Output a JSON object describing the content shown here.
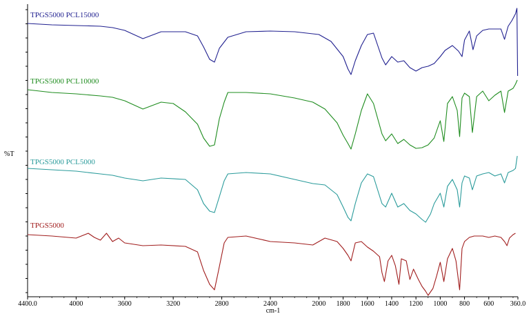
{
  "chart_data": {
    "type": "line",
    "xlabel": "cm-1",
    "ylabel": "%T",
    "xlim": [
      4400,
      360
    ],
    "x_reversed": true,
    "grid": false,
    "x_ticks": [
      {
        "value": 4400,
        "label": "4400.0"
      },
      {
        "value": 4000,
        "label": "4000"
      },
      {
        "value": 3600,
        "label": "3600"
      },
      {
        "value": 3200,
        "label": "3200"
      },
      {
        "value": 2800,
        "label": "2800"
      },
      {
        "value": 2400,
        "label": "2400"
      },
      {
        "value": 2000,
        "label": "2000"
      },
      {
        "value": 1800,
        "label": "1800"
      },
      {
        "value": 1600,
        "label": "1600"
      },
      {
        "value": 1400,
        "label": "1400"
      },
      {
        "value": 1200,
        "label": "1200"
      },
      {
        "value": 1000,
        "label": "1000"
      },
      {
        "value": 800,
        "label": "800"
      },
      {
        "value": 600,
        "label": "600"
      },
      {
        "value": 360,
        "label": "360.0"
      }
    ],
    "series": [
      {
        "name": "TPGS5000 PCL15000",
        "color": "#1f1f8f",
        "points": [
          [
            4400,
            34
          ],
          [
            4200,
            36
          ],
          [
            4000,
            37
          ],
          [
            3800,
            38
          ],
          [
            3700,
            40
          ],
          [
            3600,
            44
          ],
          [
            3450,
            56
          ],
          [
            3300,
            46
          ],
          [
            3100,
            46
          ],
          [
            3000,
            52
          ],
          [
            2950,
            68
          ],
          [
            2900,
            86
          ],
          [
            2860,
            90
          ],
          [
            2820,
            70
          ],
          [
            2750,
            54
          ],
          [
            2600,
            46
          ],
          [
            2400,
            45
          ],
          [
            2200,
            46
          ],
          [
            2000,
            50
          ],
          [
            1900,
            60
          ],
          [
            1800,
            82
          ],
          [
            1760,
            100
          ],
          [
            1735,
            108
          ],
          [
            1700,
            88
          ],
          [
            1650,
            66
          ],
          [
            1600,
            50
          ],
          [
            1550,
            48
          ],
          [
            1480,
            84
          ],
          [
            1450,
            94
          ],
          [
            1400,
            82
          ],
          [
            1350,
            90
          ],
          [
            1300,
            88
          ],
          [
            1250,
            98
          ],
          [
            1200,
            103
          ],
          [
            1150,
            98
          ],
          [
            1100,
            96
          ],
          [
            1050,
            92
          ],
          [
            1000,
            82
          ],
          [
            960,
            73
          ],
          [
            900,
            66
          ],
          [
            850,
            74
          ],
          [
            820,
            82
          ],
          [
            800,
            58
          ],
          [
            760,
            45
          ],
          [
            730,
            72
          ],
          [
            700,
            52
          ],
          [
            650,
            44
          ],
          [
            600,
            42
          ],
          [
            550,
            42
          ],
          [
            500,
            42
          ],
          [
            470,
            57
          ],
          [
            440,
            38
          ],
          [
            410,
            30
          ],
          [
            380,
            20
          ],
          [
            368,
            12
          ],
          [
            362,
            110
          ]
        ]
      },
      {
        "name": "TPGS5000 PCL10000",
        "color": "#1e8c1e",
        "points": [
          [
            4400,
            130
          ],
          [
            4200,
            134
          ],
          [
            4000,
            136
          ],
          [
            3800,
            139
          ],
          [
            3700,
            141
          ],
          [
            3600,
            146
          ],
          [
            3450,
            158
          ],
          [
            3300,
            148
          ],
          [
            3200,
            150
          ],
          [
            3100,
            162
          ],
          [
            3000,
            180
          ],
          [
            2950,
            200
          ],
          [
            2900,
            212
          ],
          [
            2860,
            210
          ],
          [
            2820,
            172
          ],
          [
            2780,
            148
          ],
          [
            2750,
            134
          ],
          [
            2600,
            134
          ],
          [
            2400,
            136
          ],
          [
            2200,
            142
          ],
          [
            2050,
            148
          ],
          [
            1950,
            158
          ],
          [
            1850,
            178
          ],
          [
            1800,
            196
          ],
          [
            1760,
            208
          ],
          [
            1735,
            216
          ],
          [
            1700,
            194
          ],
          [
            1650,
            160
          ],
          [
            1600,
            136
          ],
          [
            1550,
            150
          ],
          [
            1480,
            194
          ],
          [
            1450,
            204
          ],
          [
            1400,
            194
          ],
          [
            1350,
            208
          ],
          [
            1300,
            202
          ],
          [
            1250,
            210
          ],
          [
            1200,
            215
          ],
          [
            1150,
            214
          ],
          [
            1100,
            210
          ],
          [
            1050,
            200
          ],
          [
            1020,
            185
          ],
          [
            1000,
            175
          ],
          [
            970,
            205
          ],
          [
            940,
            150
          ],
          [
            900,
            140
          ],
          [
            860,
            160
          ],
          [
            840,
            198
          ],
          [
            820,
            142
          ],
          [
            800,
            135
          ],
          [
            760,
            140
          ],
          [
            735,
            192
          ],
          [
            700,
            140
          ],
          [
            650,
            132
          ],
          [
            600,
            146
          ],
          [
            550,
            138
          ],
          [
            500,
            132
          ],
          [
            470,
            163
          ],
          [
            440,
            132
          ],
          [
            400,
            128
          ],
          [
            380,
            122
          ],
          [
            365,
            116
          ]
        ]
      },
      {
        "name": "TPGS5000 PCL5000",
        "color": "#289a9a",
        "points": [
          [
            4400,
            244
          ],
          [
            4200,
            246
          ],
          [
            4000,
            248
          ],
          [
            3800,
            252
          ],
          [
            3700,
            254
          ],
          [
            3600,
            258
          ],
          [
            3450,
            262
          ],
          [
            3300,
            258
          ],
          [
            3100,
            260
          ],
          [
            3000,
            275
          ],
          [
            2950,
            295
          ],
          [
            2900,
            306
          ],
          [
            2860,
            308
          ],
          [
            2820,
            285
          ],
          [
            2780,
            262
          ],
          [
            2750,
            252
          ],
          [
            2600,
            250
          ],
          [
            2400,
            252
          ],
          [
            2200,
            260
          ],
          [
            2050,
            266
          ],
          [
            1950,
            268
          ],
          [
            1850,
            282
          ],
          [
            1800,
            300
          ],
          [
            1760,
            315
          ],
          [
            1735,
            320
          ],
          [
            1700,
            295
          ],
          [
            1650,
            265
          ],
          [
            1600,
            252
          ],
          [
            1550,
            256
          ],
          [
            1480,
            295
          ],
          [
            1450,
            300
          ],
          [
            1400,
            280
          ],
          [
            1350,
            300
          ],
          [
            1300,
            295
          ],
          [
            1250,
            305
          ],
          [
            1200,
            310
          ],
          [
            1150,
            318
          ],
          [
            1120,
            322
          ],
          [
            1080,
            310
          ],
          [
            1050,
            295
          ],
          [
            1000,
            280
          ],
          [
            970,
            300
          ],
          [
            940,
            270
          ],
          [
            900,
            260
          ],
          [
            860,
            275
          ],
          [
            840,
            300
          ],
          [
            820,
            265
          ],
          [
            800,
            255
          ],
          [
            760,
            258
          ],
          [
            735,
            275
          ],
          [
            700,
            255
          ],
          [
            650,
            252
          ],
          [
            600,
            250
          ],
          [
            550,
            255
          ],
          [
            500,
            252
          ],
          [
            470,
            265
          ],
          [
            440,
            250
          ],
          [
            400,
            247
          ],
          [
            380,
            244
          ],
          [
            365,
            226
          ]
        ]
      },
      {
        "name": "TPGS5000",
        "color": "#a01c1c",
        "points": [
          [
            4400,
            340
          ],
          [
            4200,
            342
          ],
          [
            4000,
            345
          ],
          [
            3900,
            338
          ],
          [
            3850,
            344
          ],
          [
            3800,
            348
          ],
          [
            3750,
            338
          ],
          [
            3700,
            350
          ],
          [
            3650,
            345
          ],
          [
            3600,
            352
          ],
          [
            3450,
            356
          ],
          [
            3300,
            355
          ],
          [
            3100,
            357
          ],
          [
            3000,
            365
          ],
          [
            2950,
            392
          ],
          [
            2900,
            412
          ],
          [
            2860,
            420
          ],
          [
            2830,
            395
          ],
          [
            2780,
            352
          ],
          [
            2750,
            344
          ],
          [
            2600,
            342
          ],
          [
            2400,
            350
          ],
          [
            2200,
            352
          ],
          [
            2050,
            355
          ],
          [
            1950,
            345
          ],
          [
            1850,
            350
          ],
          [
            1800,
            360
          ],
          [
            1760,
            370
          ],
          [
            1735,
            378
          ],
          [
            1700,
            352
          ],
          [
            1650,
            350
          ],
          [
            1600,
            358
          ],
          [
            1550,
            364
          ],
          [
            1500,
            372
          ],
          [
            1480,
            395
          ],
          [
            1460,
            408
          ],
          [
            1430,
            378
          ],
          [
            1400,
            370
          ],
          [
            1370,
            385
          ],
          [
            1340,
            412
          ],
          [
            1320,
            375
          ],
          [
            1280,
            378
          ],
          [
            1250,
            405
          ],
          [
            1220,
            390
          ],
          [
            1180,
            405
          ],
          [
            1150,
            415
          ],
          [
            1120,
            422
          ],
          [
            1100,
            428
          ],
          [
            1060,
            418
          ],
          [
            1030,
            400
          ],
          [
            1000,
            380
          ],
          [
            970,
            408
          ],
          [
            940,
            375
          ],
          [
            900,
            360
          ],
          [
            870,
            378
          ],
          [
            840,
            420
          ],
          [
            820,
            360
          ],
          [
            800,
            350
          ],
          [
            760,
            344
          ],
          [
            720,
            342
          ],
          [
            650,
            342
          ],
          [
            600,
            344
          ],
          [
            550,
            342
          ],
          [
            500,
            344
          ],
          [
            470,
            350
          ],
          [
            450,
            356
          ],
          [
            430,
            345
          ],
          [
            400,
            340
          ],
          [
            380,
            338
          ]
        ]
      }
    ]
  }
}
